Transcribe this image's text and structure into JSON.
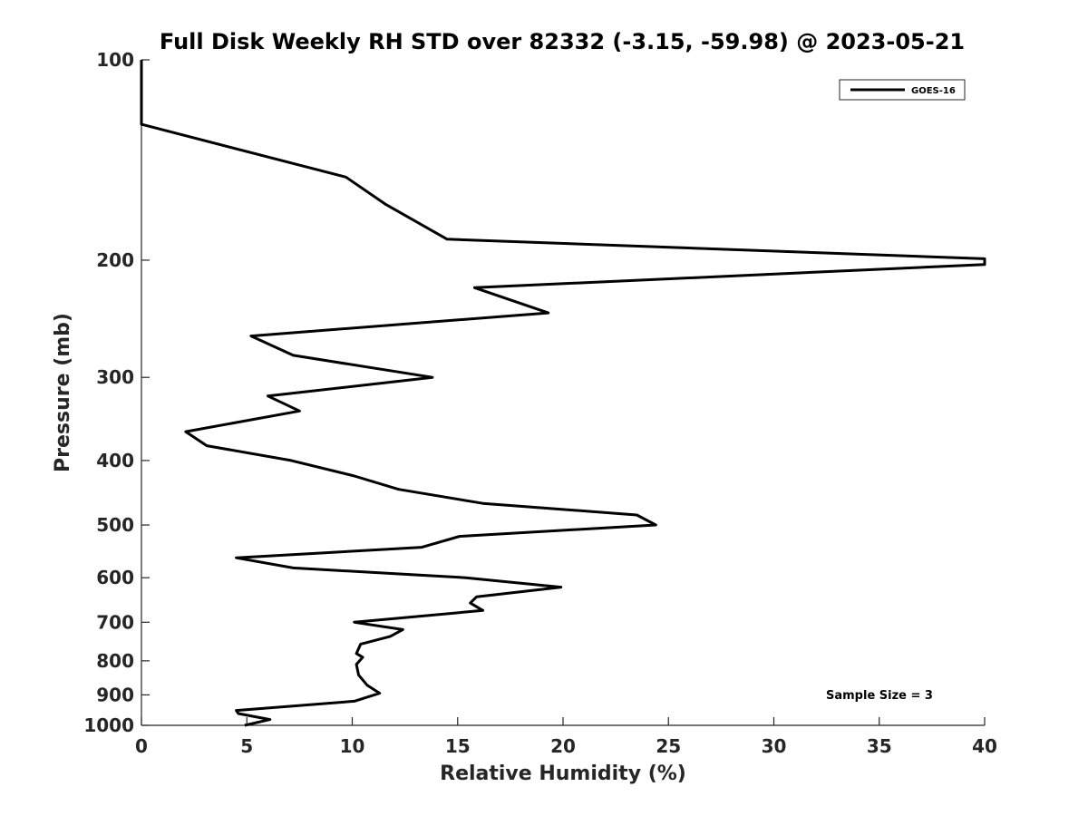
{
  "chart_data": {
    "type": "line",
    "title": "Full Disk Weekly RH STD over 82332 (-3.15, -59.98) @ 2023-05-21",
    "xlabel": "Relative Humidity (%)",
    "ylabel": "Pressure (mb)",
    "xlim": [
      0,
      40
    ],
    "ylim": [
      100,
      1000
    ],
    "y_scale": "log",
    "y_reversed": true,
    "grid": false,
    "legend_position": "top-right",
    "x_ticks": [
      0,
      5,
      10,
      15,
      20,
      25,
      30,
      35,
      40
    ],
    "y_ticks": [
      100,
      200,
      300,
      400,
      500,
      600,
      700,
      800,
      900,
      1000
    ],
    "series": [
      {
        "name": "GOES-16",
        "color": "#000000",
        "points": [
          [
            0,
            100
          ],
          [
            0,
            125
          ],
          [
            9.7,
            150
          ],
          [
            11.6,
            165
          ],
          [
            14.5,
            186
          ],
          [
            40,
            199
          ],
          [
            40,
            203
          ],
          [
            15.8,
            220
          ],
          [
            19.3,
            240
          ],
          [
            5.2,
            260
          ],
          [
            7.2,
            278
          ],
          [
            13.8,
            300
          ],
          [
            6.0,
            320
          ],
          [
            7.5,
            337
          ],
          [
            2.1,
            362
          ],
          [
            3.1,
            380
          ],
          [
            7.1,
            400
          ],
          [
            10.1,
            422
          ],
          [
            12.2,
            442
          ],
          [
            16.2,
            464
          ],
          [
            23.5,
            483
          ],
          [
            24.4,
            500
          ],
          [
            15.1,
            520
          ],
          [
            13.3,
            540
          ],
          [
            4.5,
            560
          ],
          [
            7.2,
            580
          ],
          [
            15.4,
            600
          ],
          [
            19.9,
            620
          ],
          [
            15.9,
            641
          ],
          [
            15.6,
            655
          ],
          [
            16.2,
            672
          ],
          [
            10.1,
            700
          ],
          [
            12.4,
            718
          ],
          [
            11.8,
            735
          ],
          [
            10.4,
            755
          ],
          [
            10.2,
            780
          ],
          [
            10.5,
            790
          ],
          [
            10.2,
            810
          ],
          [
            10.3,
            840
          ],
          [
            10.7,
            870
          ],
          [
            11.3,
            895
          ],
          [
            10.1,
            920
          ],
          [
            4.5,
            950
          ],
          [
            4.6,
            960
          ],
          [
            6.1,
            980
          ],
          [
            4.9,
            1000
          ]
        ]
      }
    ],
    "annotation": "Sample Size = 3"
  }
}
